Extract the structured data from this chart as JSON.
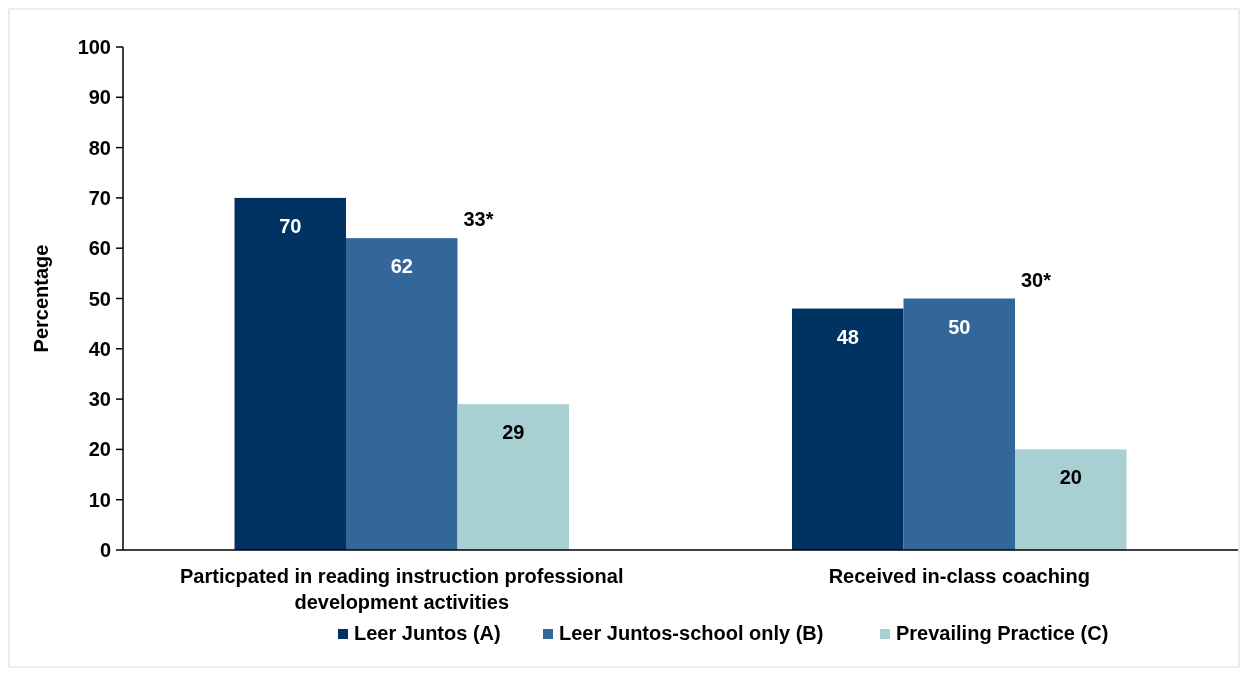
{
  "chart_data": {
    "type": "bar",
    "ylabel": "Percentage",
    "categories": [
      "Particpated in reading instruction professional development activities",
      "Received in-class coaching"
    ],
    "series": [
      {
        "name": "Leer Juntos (A)",
        "color": "#003361",
        "values": [
          70,
          48
        ]
      },
      {
        "name": "Leer Juntos-school only (B)",
        "color": "#336699",
        "values": [
          62,
          50
        ]
      },
      {
        "name": "Prevailing Practice (C)",
        "color": "#a8cfd1",
        "values": [
          29,
          20
        ]
      }
    ],
    "ylim": [
      0,
      100
    ],
    "yticks": [
      0,
      10,
      20,
      30,
      40,
      50,
      60,
      70,
      80,
      90,
      100
    ],
    "data_labels": true,
    "legend": "bottom",
    "annotations": [
      "33*",
      "30*"
    ]
  }
}
